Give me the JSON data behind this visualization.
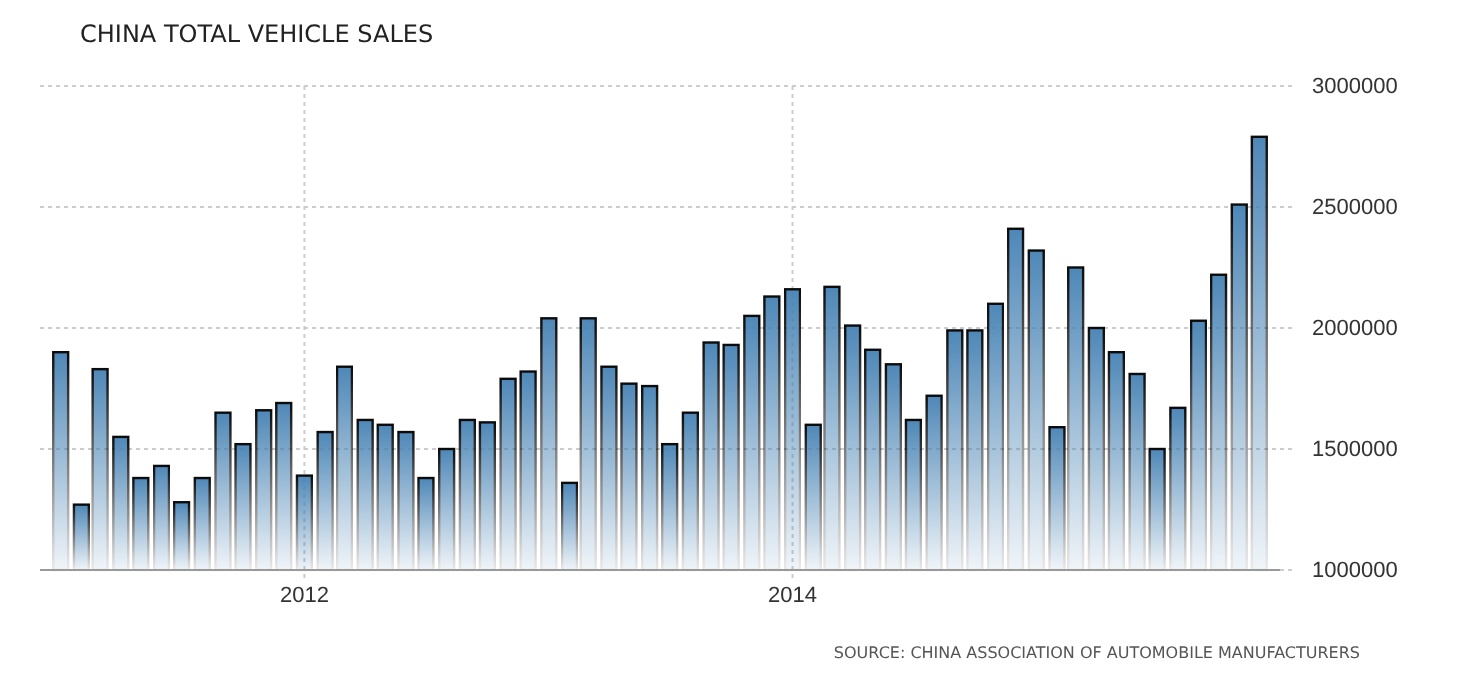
{
  "chart_data": {
    "type": "bar",
    "title": "CHINA TOTAL VEHICLE SALES",
    "x": [
      "2011-01",
      "2011-02",
      "2011-03",
      "2011-04",
      "2011-05",
      "2011-06",
      "2011-07",
      "2011-08",
      "2011-09",
      "2011-10",
      "2011-11",
      "2011-12",
      "2012-01",
      "2012-02",
      "2012-03",
      "2012-04",
      "2012-05",
      "2012-06",
      "2012-07",
      "2012-08",
      "2012-09",
      "2012-10",
      "2012-11",
      "2012-12",
      "2013-01",
      "2013-02",
      "2013-03",
      "2013-04",
      "2013-05",
      "2013-06",
      "2013-07",
      "2013-08",
      "2013-09",
      "2013-10",
      "2013-11",
      "2013-12",
      "2014-01",
      "2014-02",
      "2014-03",
      "2014-04",
      "2014-05",
      "2014-06",
      "2014-07",
      "2014-08",
      "2014-09",
      "2014-10",
      "2014-11",
      "2014-12",
      "2015-01",
      "2015-02",
      "2015-03",
      "2015-04",
      "2015-05",
      "2015-06",
      "2015-07",
      "2015-08",
      "2015-09",
      "2015-10",
      "2015-11",
      "2015-12"
    ],
    "values": [
      1900000,
      1270000,
      1830000,
      1550000,
      1380000,
      1430000,
      1280000,
      1380000,
      1650000,
      1520000,
      1660000,
      1690000,
      1390000,
      1570000,
      1840000,
      1620000,
      1600000,
      1570000,
      1380000,
      1500000,
      1620000,
      1610000,
      1790000,
      1820000,
      2040000,
      1360000,
      2040000,
      1840000,
      1770000,
      1760000,
      1520000,
      1650000,
      1940000,
      1930000,
      2050000,
      2130000,
      2160000,
      1600000,
      2170000,
      2010000,
      1910000,
      1850000,
      1620000,
      1720000,
      1990000,
      1990000,
      2100000,
      2410000,
      2320000,
      1590000,
      2250000,
      2000000,
      1900000,
      1810000,
      1500000,
      1670000,
      2030000,
      2220000,
      2510000,
      2790000
    ],
    "color": "#4682b4",
    "xlim": [
      "2010-12-01",
      "2016-01-01"
    ],
    "xticks": [
      {
        "value": "2012-01",
        "label": "2012"
      },
      {
        "value": "2014-01",
        "label": "2014"
      }
    ],
    "ylim": [
      1000000,
      3000000
    ],
    "yticks": [
      1000000,
      1500000,
      2000000,
      2500000,
      3000000
    ],
    "grid": true,
    "annotations": [
      "SOURCE: CHINA ASSOCIATION OF AUTOMOBILE MANUFACTURERS"
    ]
  }
}
